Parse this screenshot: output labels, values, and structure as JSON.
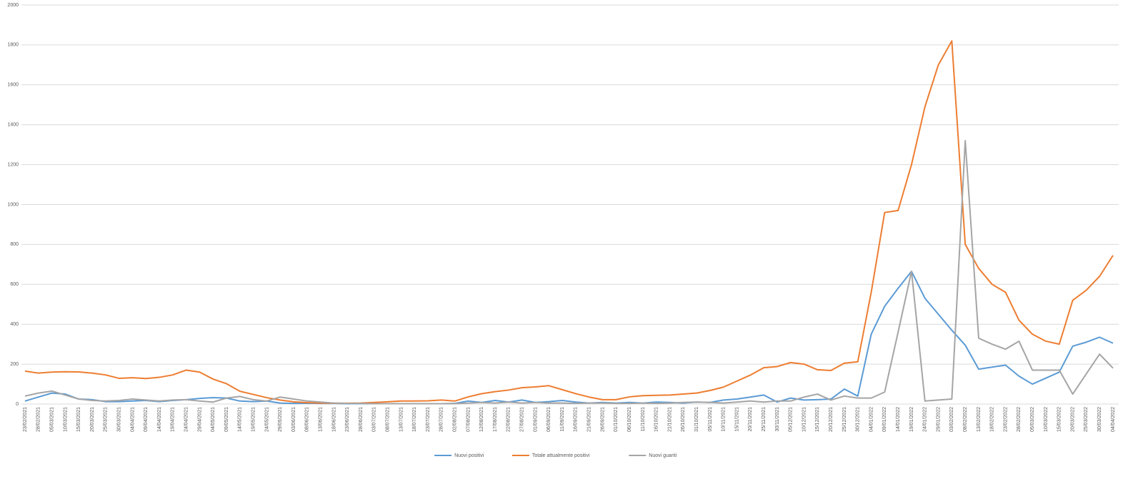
{
  "chart_data": {
    "type": "line",
    "categories": [
      "23/02/2021",
      "28/02/2021",
      "05/03/2021",
      "10/03/2021",
      "15/03/2021",
      "20/03/2021",
      "25/03/2021",
      "30/03/2021",
      "04/04/2021",
      "09/04/2021",
      "14/04/2021",
      "19/04/2021",
      "24/04/2021",
      "29/04/2021",
      "04/05/2021",
      "09/05/2021",
      "14/05/2021",
      "19/05/2021",
      "24/05/2021",
      "29/05/2021",
      "03/06/2021",
      "08/06/2021",
      "13/06/2021",
      "18/06/2021",
      "23/06/2021",
      "28/06/2021",
      "03/07/2021",
      "08/07/2021",
      "13/07/2021",
      "18/07/2021",
      "23/07/2021",
      "28/07/2021",
      "02/08/2021",
      "07/08/2021",
      "12/08/2021",
      "17/08/2021",
      "22/08/2021",
      "27/08/2021",
      "01/09/2021",
      "06/09/2021",
      "11/09/2021",
      "16/09/2021",
      "21/09/2021",
      "26/09/2021",
      "01/10/2021",
      "06/10/2021",
      "11/10/2021",
      "16/10/2021",
      "21/10/2021",
      "26/10/2021",
      "31/10/2021",
      "05/11/2021",
      "10/11/2021",
      "15/11/2021",
      "20/11/2021",
      "25/11/2021",
      "30/11/2021",
      "05/12/2021",
      "10/12/2021",
      "15/12/2021",
      "20/12/2021",
      "25/12/2021",
      "30/12/2021",
      "04/01/2022",
      "09/01/2022",
      "14/01/2022",
      "19/01/2022",
      "24/01/2022",
      "29/01/2022",
      "03/02/2022",
      "08/02/2022",
      "13/02/2022",
      "18/02/2022",
      "23/02/2022",
      "28/02/2022",
      "05/03/2022",
      "10/03/2022",
      "15/03/2022",
      "20/03/2022",
      "25/03/2022",
      "30/03/2022",
      "04/04/2022"
    ],
    "series": [
      {
        "name": "Nuovi positivi",
        "color": "#5b9bd5",
        "values": [
          15,
          35,
          55,
          50,
          25,
          22,
          12,
          12,
          15,
          18,
          12,
          18,
          22,
          28,
          32,
          30,
          15,
          12,
          15,
          5,
          3,
          4,
          3,
          3,
          2,
          2,
          2,
          2,
          2,
          2,
          2,
          2,
          3,
          15,
          8,
          18,
          10,
          20,
          8,
          12,
          18,
          10,
          5,
          8,
          5,
          8,
          5,
          10,
          8,
          5,
          10,
          8,
          20,
          25,
          35,
          45,
          10,
          30,
          20,
          22,
          25,
          75,
          40,
          350,
          490,
          580,
          665,
          530,
          450,
          370,
          295,
          175,
          185,
          195,
          140,
          100,
          130,
          160,
          290,
          310,
          335,
          305
        ]
      },
      {
        "name": "Totale attualmente positivi",
        "color": "#ed7d31",
        "values": [
          165,
          155,
          160,
          162,
          161,
          155,
          146,
          129,
          132,
          128,
          134,
          146,
          170,
          160,
          125,
          102,
          64,
          48,
          32,
          20,
          11,
          7,
          5,
          4,
          4,
          5,
          8,
          11,
          15,
          15,
          16,
          20,
          15,
          36,
          52,
          62,
          70,
          82,
          86,
          92,
          72,
          52,
          35,
          22,
          22,
          36,
          42,
          44,
          45,
          50,
          55,
          68,
          85,
          115,
          145,
          182,
          188,
          208,
          200,
          172,
          168,
          205,
          212,
          560,
          960,
          970,
          1200,
          1490,
          1700,
          1820,
          800,
          680,
          600,
          560,
          420,
          350,
          315,
          300,
          520,
          570,
          640,
          745
        ]
      },
      {
        "name": "Nuovi guariti",
        "color": "#a5a5a5",
        "values": [
          40,
          55,
          65,
          45,
          25,
          18,
          15,
          18,
          25,
          20,
          15,
          20,
          22,
          15,
          10,
          30,
          38,
          22,
          15,
          35,
          25,
          15,
          10,
          5,
          3,
          3,
          2,
          2,
          2,
          2,
          2,
          2,
          2,
          5,
          8,
          5,
          10,
          5,
          8,
          5,
          5,
          3,
          5,
          5,
          3,
          3,
          5,
          3,
          5,
          8,
          10,
          8,
          5,
          10,
          15,
          10,
          15,
          15,
          35,
          50,
          20,
          40,
          30,
          30,
          60,
          360,
          665,
          15,
          20,
          25,
          1320,
          330,
          300,
          275,
          315,
          170,
          170,
          170,
          50,
          150,
          250,
          180
        ]
      }
    ],
    "ylim": [
      0,
      2000
    ],
    "yticks": [
      0,
      200,
      400,
      600,
      800,
      1000,
      1200,
      1400,
      1600,
      1800,
      2000
    ],
    "grid": true,
    "legend": "bottom"
  }
}
